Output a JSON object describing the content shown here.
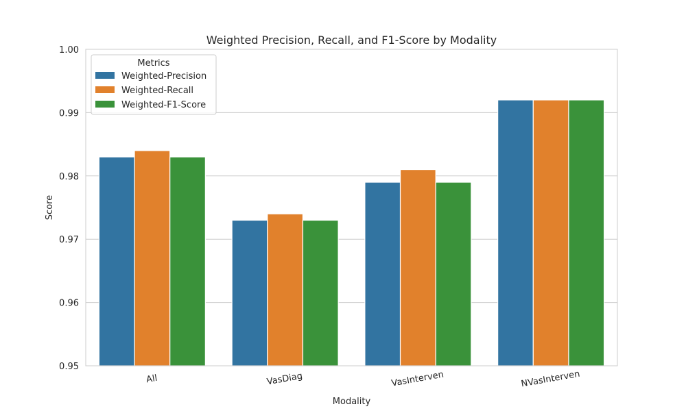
{
  "chart_data": {
    "type": "bar",
    "title": "Weighted Precision, Recall, and F1-Score by Modality",
    "xlabel": "Modality",
    "ylabel": "Score",
    "categories": [
      "All",
      "VasDiag",
      "VasInterven",
      "NVasInterven"
    ],
    "ylim": [
      0.95,
      1.0
    ],
    "yticks": [
      "0.95",
      "0.96",
      "0.97",
      "0.98",
      "0.99",
      "1.00"
    ],
    "grid": "horizontal",
    "legend": {
      "title": "Metrics",
      "placement": "top-left"
    },
    "series": [
      {
        "name": "Weighted-Precision",
        "color": "#3274a1",
        "values": [
          0.983,
          0.973,
          0.979,
          0.992
        ]
      },
      {
        "name": "Weighted-Recall",
        "color": "#e1812c",
        "values": [
          0.984,
          0.974,
          0.981,
          0.992
        ]
      },
      {
        "name": "Weighted-F1-Score",
        "color": "#3a923a",
        "values": [
          0.983,
          0.973,
          0.979,
          0.992
        ]
      }
    ]
  }
}
